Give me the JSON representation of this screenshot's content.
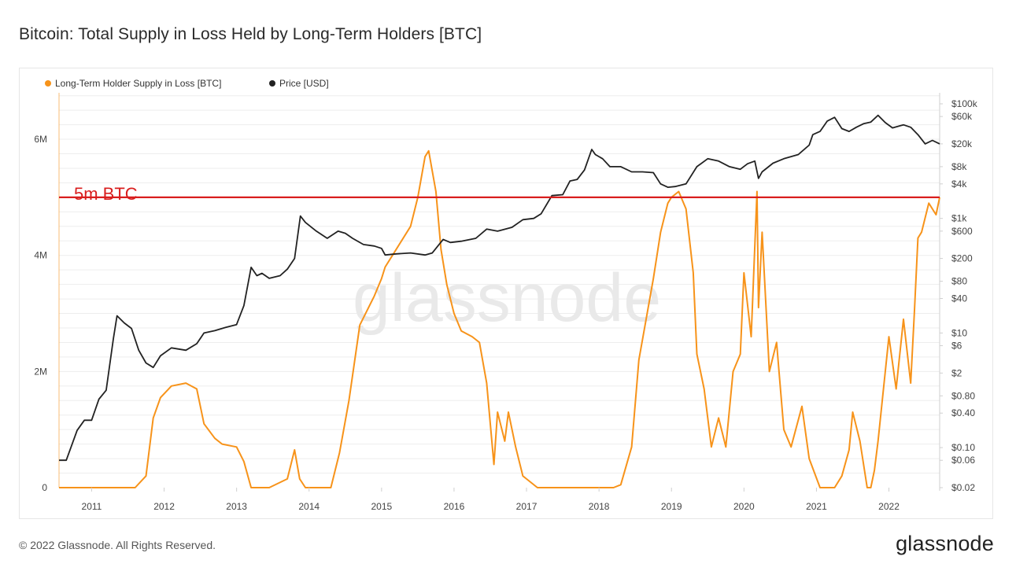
{
  "title": "Bitcoin: Total Supply in Loss Held by Long-Term Holders [BTC]",
  "footer": "© 2022 Glassnode. All Rights Reserved.",
  "brand": "glassnode",
  "watermark": "glassnode",
  "colors": {
    "supply": "#f7931a",
    "price": "#222222",
    "threshold": "#d91e1e",
    "grid": "#ededed"
  },
  "chart_data": {
    "type": "line",
    "title": "Bitcoin: Total Supply in Loss Held by Long-Term Holders [BTC]",
    "x_ticks": [
      "2011",
      "2012",
      "2013",
      "2014",
      "2015",
      "2016",
      "2017",
      "2018",
      "2019",
      "2020",
      "2021",
      "2022"
    ],
    "x_range": [
      2010.55,
      2022.7
    ],
    "y_left": {
      "range": [
        0,
        6800000
      ],
      "ticks": [
        {
          "value": 0,
          "label": "0"
        },
        {
          "value": 2000000,
          "label": "2M"
        },
        {
          "value": 4000000,
          "label": "4M"
        },
        {
          "value": 6000000,
          "label": "6M"
        }
      ]
    },
    "y_right": {
      "scale": "log",
      "range": [
        0.02,
        100000
      ],
      "ticks": [
        {
          "value": 100000,
          "label": "$100k"
        },
        {
          "value": 60000,
          "label": "$60k"
        },
        {
          "value": 20000,
          "label": "$20k"
        },
        {
          "value": 8000,
          "label": "$8k"
        },
        {
          "value": 4000,
          "label": "$4k"
        },
        {
          "value": 1000,
          "label": "$1k"
        },
        {
          "value": 600,
          "label": "$600"
        },
        {
          "value": 200,
          "label": "$200"
        },
        {
          "value": 80,
          "label": "$80"
        },
        {
          "value": 40,
          "label": "$40"
        },
        {
          "value": 10,
          "label": "$10"
        },
        {
          "value": 6,
          "label": "$6"
        },
        {
          "value": 2,
          "label": "$2"
        },
        {
          "value": 0.8,
          "label": "$0.80"
        },
        {
          "value": 0.4,
          "label": "$0.40"
        },
        {
          "value": 0.1,
          "label": "$0.10"
        },
        {
          "value": 0.06,
          "label": "$0.06"
        },
        {
          "value": 0.02,
          "label": "$0.02"
        }
      ]
    },
    "legend": [
      {
        "name": "Long-Term Holder Supply in Loss [BTC]",
        "color": "#f7931a"
      },
      {
        "name": "Price [USD]",
        "color": "#222222"
      }
    ],
    "threshold": {
      "value": 5000000,
      "label": "5m BTC"
    },
    "series": [
      {
        "name": "Long-Term Holder Supply in Loss [BTC]",
        "axis": "left",
        "x": [
          2010.55,
          2011.6,
          2011.75,
          2011.85,
          2011.95,
          2012.1,
          2012.3,
          2012.45,
          2012.55,
          2012.7,
          2012.8,
          2013.0,
          2013.1,
          2013.2,
          2013.3,
          2013.45,
          2013.7,
          2013.8,
          2013.87,
          2013.95,
          2014.3,
          2014.42,
          2014.55,
          2014.7,
          2014.9,
          2015.0,
          2015.05,
          2015.2,
          2015.4,
          2015.5,
          2015.6,
          2015.65,
          2015.75,
          2015.82,
          2015.9,
          2016.0,
          2016.1,
          2016.25,
          2016.35,
          2016.45,
          2016.55,
          2016.6,
          2016.7,
          2016.75,
          2016.85,
          2016.95,
          2017.0,
          2017.15,
          2017.3,
          2018.2,
          2018.3,
          2018.45,
          2018.55,
          2018.65,
          2018.75,
          2018.85,
          2018.95,
          2019.0,
          2019.1,
          2019.2,
          2019.3,
          2019.35,
          2019.45,
          2019.55,
          2019.65,
          2019.75,
          2019.85,
          2019.95,
          2020.0,
          2020.1,
          2020.18,
          2020.2,
          2020.25,
          2020.35,
          2020.45,
          2020.55,
          2020.65,
          2020.8,
          2020.9,
          2021.05,
          2021.25,
          2021.35,
          2021.45,
          2021.5,
          2021.6,
          2021.7,
          2021.75,
          2021.8,
          2021.85,
          2021.9,
          2022.0,
          2022.1,
          2022.2,
          2022.3,
          2022.35,
          2022.4,
          2022.45,
          2022.55,
          2022.65,
          2022.7
        ],
        "y": [
          0,
          0,
          200000,
          1200000,
          1550000,
          1750000,
          1800000,
          1700000,
          1100000,
          850000,
          750000,
          700000,
          450000,
          0,
          0,
          0,
          150000,
          650000,
          150000,
          0,
          0,
          600000,
          1500000,
          2800000,
          3300000,
          3600000,
          3800000,
          4100000,
          4500000,
          5000000,
          5700000,
          5800000,
          5100000,
          4100000,
          3500000,
          3000000,
          2700000,
          2600000,
          2500000,
          1800000,
          400000,
          1300000,
          800000,
          1300000,
          700000,
          200000,
          150000,
          0,
          0,
          0,
          50000,
          700000,
          2200000,
          2900000,
          3600000,
          4400000,
          4900000,
          5000000,
          5100000,
          4800000,
          3700000,
          2300000,
          1700000,
          700000,
          1200000,
          700000,
          2000000,
          2300000,
          3700000,
          2600000,
          5100000,
          3100000,
          4400000,
          2000000,
          2500000,
          1000000,
          700000,
          1400000,
          500000,
          0,
          0,
          200000,
          650000,
          1300000,
          800000,
          0,
          0,
          300000,
          800000,
          1400000,
          2600000,
          1700000,
          2900000,
          1800000,
          3000000,
          4300000,
          4400000,
          4900000,
          4700000,
          5000000
        ]
      },
      {
        "name": "Price [USD]",
        "axis": "right",
        "x": [
          2010.55,
          2010.65,
          2010.8,
          2010.9,
          2011.0,
          2011.1,
          2011.2,
          2011.3,
          2011.35,
          2011.45,
          2011.55,
          2011.65,
          2011.75,
          2011.85,
          2011.95,
          2012.1,
          2012.3,
          2012.45,
          2012.55,
          2012.7,
          2012.85,
          2013.0,
          2013.1,
          2013.2,
          2013.28,
          2013.35,
          2013.45,
          2013.6,
          2013.7,
          2013.8,
          2013.88,
          2013.95,
          2014.1,
          2014.25,
          2014.4,
          2014.5,
          2014.6,
          2014.75,
          2014.9,
          2015.0,
          2015.05,
          2015.2,
          2015.4,
          2015.6,
          2015.7,
          2015.85,
          2015.95,
          2016.1,
          2016.3,
          2016.45,
          2016.6,
          2016.8,
          2016.95,
          2017.1,
          2017.2,
          2017.35,
          2017.5,
          2017.6,
          2017.7,
          2017.8,
          2017.9,
          2017.95,
          2018.05,
          2018.15,
          2018.3,
          2018.45,
          2018.6,
          2018.75,
          2018.85,
          2018.95,
          2019.05,
          2019.2,
          2019.35,
          2019.5,
          2019.65,
          2019.8,
          2019.95,
          2020.05,
          2020.15,
          2020.2,
          2020.25,
          2020.4,
          2020.55,
          2020.75,
          2020.9,
          2020.95,
          2021.05,
          2021.15,
          2021.25,
          2021.35,
          2021.45,
          2021.55,
          2021.65,
          2021.75,
          2021.85,
          2021.95,
          2022.05,
          2022.2,
          2022.3,
          2022.4,
          2022.5,
          2022.6,
          2022.7
        ],
        "y": [
          0.06,
          0.06,
          0.2,
          0.3,
          0.3,
          0.7,
          1.0,
          8.0,
          20.0,
          15.0,
          12.0,
          5.0,
          3.0,
          2.5,
          4.0,
          5.5,
          5.0,
          6.5,
          10.0,
          11.0,
          12.5,
          14.0,
          30.0,
          140.0,
          100.0,
          110.0,
          90.0,
          100.0,
          130.0,
          200.0,
          1100.0,
          850.0,
          600.0,
          450.0,
          600.0,
          550.0,
          450.0,
          350.0,
          330.0,
          300.0,
          230.0,
          240.0,
          250.0,
          230.0,
          250.0,
          430.0,
          380.0,
          400.0,
          450.0,
          650.0,
          600.0,
          700.0,
          950.0,
          1000.0,
          1200.0,
          2500.0,
          2600.0,
          4500.0,
          4800.0,
          7000.0,
          16000.0,
          13000.0,
          11000.0,
          8000.0,
          8000.0,
          6500.0,
          6500.0,
          6300.0,
          4000.0,
          3500.0,
          3600.0,
          4000.0,
          8000.0,
          11000.0,
          10000.0,
          8000.0,
          7200.0,
          9000.0,
          10000.0,
          5000.0,
          6500.0,
          9200.0,
          11000.0,
          13000.0,
          19000.0,
          29000.0,
          33000.0,
          50000.0,
          58000.0,
          37000.0,
          33000.0,
          39000.0,
          45000.0,
          48000.0,
          63000.0,
          47000.0,
          38000.0,
          43000.0,
          39000.0,
          29000.0,
          20000.0,
          23000.0,
          20000.0
        ]
      }
    ]
  }
}
